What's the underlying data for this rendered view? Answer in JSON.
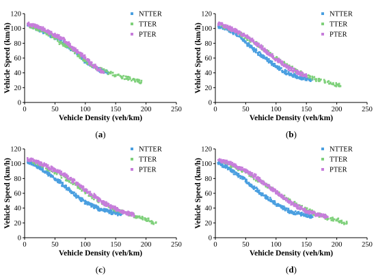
{
  "chart_data": [
    {
      "type": "scatter",
      "panel_label": "a",
      "xlabel": "Vehicle Density (veh/km)",
      "ylabel": "Vehicle Speed (km/h)",
      "xlim": [
        0,
        250
      ],
      "ylim": [
        0,
        120
      ],
      "xticks": [
        0,
        50,
        100,
        150,
        200,
        250
      ],
      "yticks": [
        0,
        20,
        40,
        60,
        80,
        100,
        120
      ],
      "legend_position": "top-right",
      "series": [
        {
          "name": "NTTER",
          "color": "#4a9fe0",
          "x": [
            5,
            10,
            15,
            20,
            25,
            30,
            35,
            40,
            45,
            50,
            55,
            60,
            65,
            70,
            75,
            80,
            85,
            90,
            95,
            100,
            105,
            110,
            115,
            120,
            125,
            130,
            135,
            140
          ],
          "y": [
            104,
            103,
            102,
            100,
            98,
            96,
            94,
            92,
            90,
            88,
            86,
            83,
            80,
            77,
            74,
            71,
            68,
            64,
            60,
            56,
            53,
            50,
            47,
            45,
            43,
            42,
            41,
            40
          ]
        },
        {
          "name": "TTER",
          "color": "#7ed07a",
          "x": [
            8,
            15,
            22,
            30,
            38,
            45,
            52,
            60,
            68,
            76,
            84,
            92,
            100,
            110,
            120,
            130,
            140,
            150,
            160,
            170,
            180,
            186,
            192
          ],
          "y": [
            104,
            102,
            100,
            97,
            93,
            90,
            87,
            80,
            77,
            72,
            68,
            62,
            57,
            50,
            46,
            43,
            40,
            37,
            35,
            33,
            31,
            29,
            27
          ]
        },
        {
          "name": "PTER",
          "color": "#c77ddb",
          "x": [
            5,
            10,
            15,
            20,
            25,
            30,
            35,
            40,
            45,
            50,
            55,
            60,
            65,
            70,
            75,
            80,
            85,
            90,
            95,
            100,
            105,
            110,
            115,
            120,
            125,
            130
          ],
          "y": [
            106,
            105,
            104,
            103,
            101,
            99,
            97,
            95,
            93,
            91,
            89,
            87,
            85,
            81,
            77,
            73,
            70,
            67,
            64,
            60,
            56,
            52,
            49,
            46,
            43,
            41
          ]
        }
      ]
    },
    {
      "type": "scatter",
      "panel_label": "b",
      "xlabel": "Vehicle Density (veh/km)",
      "ylabel": "Vehicle Speed (km/h)",
      "xlim": [
        0,
        250
      ],
      "ylim": [
        0,
        120
      ],
      "xticks": [
        0,
        50,
        100,
        150,
        200,
        250
      ],
      "yticks": [
        0,
        20,
        40,
        60,
        80,
        100,
        120
      ],
      "legend_position": "top-right",
      "series": [
        {
          "name": "NTTER",
          "color": "#4a9fe0",
          "x": [
            5,
            10,
            15,
            20,
            25,
            30,
            35,
            40,
            45,
            50,
            55,
            60,
            65,
            70,
            75,
            80,
            85,
            90,
            95,
            100,
            105,
            110,
            115,
            120,
            125,
            130,
            135,
            140,
            145,
            150,
            155,
            160
          ],
          "y": [
            103,
            102,
            101,
            99,
            97,
            95,
            92,
            89,
            85,
            82,
            78,
            74,
            70,
            67,
            64,
            61,
            58,
            55,
            52,
            49,
            46,
            43,
            41,
            39,
            37,
            36,
            35,
            34,
            33,
            32,
            31,
            31
          ]
        },
        {
          "name": "TTER",
          "color": "#7ed07a",
          "x": [
            10,
            20,
            30,
            40,
            50,
            60,
            70,
            80,
            90,
            100,
            110,
            120,
            130,
            140,
            150,
            160,
            170,
            180,
            190,
            200,
            206
          ],
          "y": [
            104,
            101,
            97,
            93,
            88,
            83,
            78,
            72,
            66,
            60,
            54,
            49,
            44,
            40,
            36,
            33,
            30,
            28,
            26,
            24,
            22
          ]
        },
        {
          "name": "PTER",
          "color": "#c77ddb",
          "x": [
            5,
            10,
            15,
            20,
            25,
            30,
            35,
            40,
            45,
            50,
            55,
            60,
            65,
            70,
            75,
            80,
            85,
            90,
            95,
            100,
            105,
            110,
            115,
            120,
            125,
            130,
            135,
            140,
            145,
            150
          ],
          "y": [
            106,
            105,
            104,
            102,
            100,
            98,
            96,
            94,
            92,
            90,
            87,
            84,
            81,
            78,
            75,
            72,
            68,
            65,
            62,
            59,
            56,
            53,
            50,
            47,
            45,
            43,
            41,
            39,
            37,
            36
          ]
        }
      ]
    },
    {
      "type": "scatter",
      "panel_label": "c",
      "xlabel": "Vehicle Density (veh/km)",
      "ylabel": "Vehicle Speed (km/h)",
      "xlim": [
        0,
        250
      ],
      "ylim": [
        0,
        120
      ],
      "xticks": [
        0,
        50,
        100,
        150,
        200,
        250
      ],
      "yticks": [
        0,
        20,
        40,
        60,
        80,
        100,
        120
      ],
      "legend_position": "top-right",
      "series": [
        {
          "name": "NTTER",
          "color": "#4a9fe0",
          "x": [
            5,
            10,
            15,
            20,
            25,
            30,
            35,
            40,
            45,
            50,
            55,
            60,
            65,
            70,
            75,
            80,
            85,
            90,
            95,
            100,
            105,
            110,
            115,
            120,
            125,
            130,
            135,
            140,
            145,
            150,
            155,
            160
          ],
          "y": [
            102,
            101,
            99,
            97,
            95,
            92,
            89,
            86,
            83,
            80,
            77,
            74,
            70,
            67,
            63,
            60,
            57,
            54,
            51,
            48,
            46,
            44,
            42,
            40,
            38,
            37,
            36,
            35,
            34,
            33,
            32,
            32
          ]
        },
        {
          "name": "TTER",
          "color": "#7ed07a",
          "x": [
            10,
            20,
            30,
            40,
            50,
            60,
            70,
            80,
            90,
            100,
            110,
            120,
            130,
            140,
            150,
            160,
            170,
            180,
            190,
            200,
            208,
            216
          ],
          "y": [
            104,
            101,
            97,
            93,
            89,
            84,
            79,
            74,
            68,
            62,
            56,
            51,
            46,
            42,
            38,
            35,
            32,
            30,
            27,
            25,
            22,
            20
          ]
        },
        {
          "name": "PTER",
          "color": "#c77ddb",
          "x": [
            5,
            10,
            15,
            20,
            25,
            30,
            35,
            40,
            45,
            50,
            55,
            60,
            65,
            70,
            75,
            80,
            85,
            90,
            95,
            100,
            105,
            110,
            115,
            120,
            125,
            130,
            135,
            140,
            145,
            150,
            155,
            160,
            165,
            170,
            175,
            180
          ],
          "y": [
            106,
            105,
            104,
            103,
            101,
            99,
            97,
            95,
            93,
            91,
            89,
            87,
            85,
            83,
            80,
            77,
            74,
            71,
            68,
            65,
            62,
            59,
            56,
            53,
            50,
            47,
            45,
            43,
            41,
            39,
            37,
            35,
            34,
            33,
            32,
            31
          ]
        }
      ]
    },
    {
      "type": "scatter",
      "panel_label": "d",
      "xlabel": "Vehicle Density (veh/km)",
      "ylabel": "Vehicle Speed (km/h)",
      "xlim": [
        0,
        250
      ],
      "ylim": [
        0,
        120
      ],
      "xticks": [
        0,
        50,
        100,
        150,
        200,
        250
      ],
      "yticks": [
        0,
        20,
        40,
        60,
        80,
        100,
        120
      ],
      "legend_position": "top-right",
      "series": [
        {
          "name": "NTTER",
          "color": "#4a9fe0",
          "x": [
            5,
            10,
            15,
            20,
            25,
            30,
            35,
            40,
            45,
            50,
            55,
            60,
            65,
            70,
            75,
            80,
            85,
            90,
            95,
            100,
            105,
            110,
            115,
            120,
            125,
            130,
            135,
            140,
            145,
            150,
            155,
            160
          ],
          "y": [
            101,
            99,
            97,
            95,
            92,
            89,
            86,
            83,
            80,
            77,
            74,
            70,
            67,
            63,
            60,
            57,
            54,
            51,
            48,
            45,
            43,
            41,
            39,
            37,
            35,
            34,
            33,
            32,
            31,
            30,
            29,
            28
          ]
        },
        {
          "name": "TTER",
          "color": "#7ed07a",
          "x": [
            10,
            20,
            30,
            40,
            50,
            60,
            70,
            80,
            90,
            100,
            110,
            120,
            130,
            140,
            150,
            160,
            170,
            180,
            190,
            200,
            208,
            216
          ],
          "y": [
            103,
            100,
            96,
            92,
            88,
            83,
            78,
            73,
            67,
            61,
            56,
            51,
            46,
            42,
            38,
            34,
            31,
            28,
            26,
            24,
            22,
            19
          ]
        },
        {
          "name": "PTER",
          "color": "#c77ddb",
          "x": [
            5,
            10,
            15,
            20,
            25,
            30,
            35,
            40,
            45,
            50,
            55,
            60,
            65,
            70,
            75,
            80,
            85,
            90,
            95,
            100,
            105,
            110,
            115,
            120,
            125,
            130,
            135,
            140,
            145,
            150,
            155,
            160,
            165,
            170,
            175,
            180,
            185
          ],
          "y": [
            105,
            104,
            103,
            102,
            100,
            98,
            96,
            94,
            92,
            90,
            88,
            86,
            83,
            80,
            77,
            74,
            71,
            68,
            65,
            62,
            59,
            56,
            53,
            50,
            47,
            44,
            42,
            40,
            38,
            36,
            34,
            33,
            32,
            31,
            30,
            29,
            28
          ]
        }
      ]
    }
  ]
}
